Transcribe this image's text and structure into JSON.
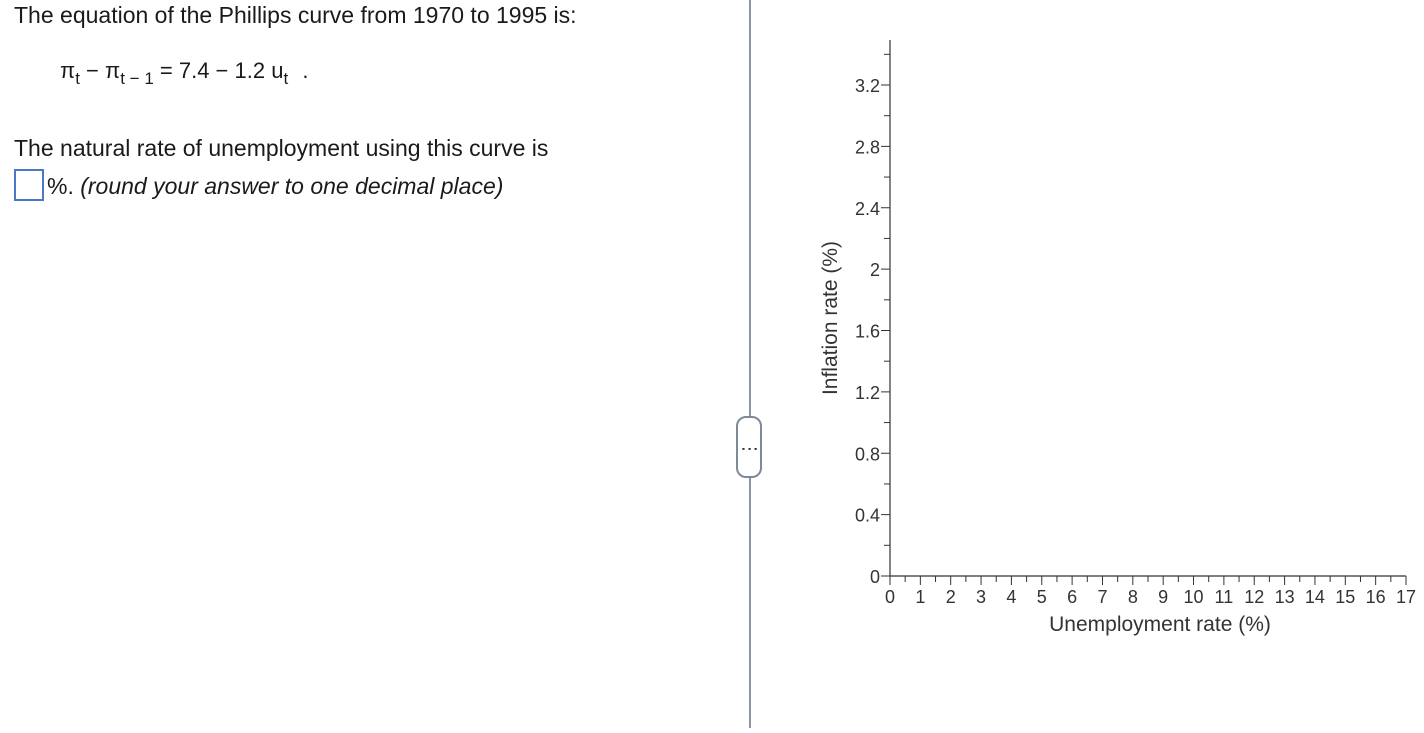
{
  "question": {
    "intro": "The equation of the Phillips curve from 1970 to 1995 is:",
    "equation": {
      "pi1": "π",
      "sub1": "t",
      "minus1": "−",
      "pi2": "π",
      "sub2": "t − 1",
      "equals_rhs": "= 7.4 − 1.2 u",
      "sub3": "t",
      "period": "."
    },
    "prompt": "The natural rate of unemployment using this curve is",
    "answer_value": "",
    "unit_suffix": "%.",
    "instruction": "(round your answer to one decimal place)"
  },
  "splitter": {
    "glyph": "⋮"
  },
  "chart_data": {
    "type": "scatter",
    "title": "",
    "xlabel": "Unemployment rate (%)",
    "ylabel": "Inflation rate (%)",
    "xlim": [
      0,
      17
    ],
    "ylim": [
      0,
      3.4
    ],
    "x_ticks": [
      0,
      1,
      2,
      3,
      4,
      5,
      6,
      7,
      8,
      9,
      10,
      11,
      12,
      13,
      14,
      15,
      16,
      17
    ],
    "x_tick_labels": [
      "0",
      "1",
      "2",
      "3",
      "4",
      "5",
      "6",
      "7",
      "8",
      "9",
      "10",
      "11",
      "12",
      "13",
      "14",
      "15",
      "16",
      "17"
    ],
    "x_minor_step": 0.5,
    "y_ticks": [
      0,
      0.4,
      0.8,
      1.2,
      1.6,
      2,
      2.4,
      2.8,
      3.2
    ],
    "y_tick_labels": [
      "0",
      "0.4",
      "0.8",
      "1.2",
      "1.6",
      "2",
      "2.4",
      "2.8",
      "3.2"
    ],
    "y_minor_step": 0.2,
    "grid": false,
    "series": []
  }
}
